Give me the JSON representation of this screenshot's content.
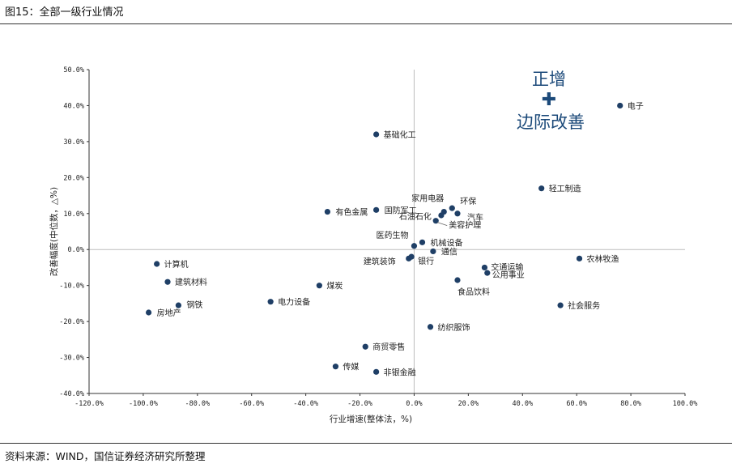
{
  "figure": {
    "title": "图15：全部一级行业情况",
    "source": "资料来源：WIND，国信证券经济研究所整理"
  },
  "chart_data": {
    "type": "scatter",
    "xlabel": "行业增速(整体法，%)",
    "ylabel": "改善幅度(中位数，△%)",
    "xlim": [
      -120,
      100
    ],
    "ylim": [
      -40,
      50
    ],
    "x_ticks": [
      -120,
      -100,
      -80,
      -60,
      -40,
      -20,
      0,
      20,
      40,
      60,
      80,
      100
    ],
    "x_tick_labels": [
      "-120.0%",
      "-100.0%",
      "-80.0%",
      "-60.0%",
      "-40.0%",
      "-20.0%",
      "0.0%",
      "20.0%",
      "40.0%",
      "60.0%",
      "80.0%",
      "100.0%"
    ],
    "y_ticks": [
      -40,
      -30,
      -20,
      -10,
      0,
      10,
      20,
      30,
      40,
      50
    ],
    "y_tick_labels": [
      "-40.0%",
      "-30.0%",
      "-20.0%",
      "-10.0%",
      "0.0%",
      "10.0%",
      "20.0%",
      "30.0%",
      "40.0%",
      "50.0%"
    ],
    "grid": false,
    "marker_color": "#1f3f66",
    "annotation": {
      "line1": "正增",
      "symbol": "✚",
      "line2": "边际改善",
      "color": "#1c4a7a"
    },
    "points": [
      {
        "label": "电子",
        "x": 76,
        "y": 40
      },
      {
        "label": "基础化工",
        "x": -14,
        "y": 32
      },
      {
        "label": "轻工制造",
        "x": 47,
        "y": 17
      },
      {
        "label": "家用电器",
        "x": 11,
        "y": 10.5
      },
      {
        "label": "环保",
        "x": 14,
        "y": 11.5
      },
      {
        "label": "汽车",
        "x": 16,
        "y": 10
      },
      {
        "label": "石油石化",
        "x": 10,
        "y": 9.5
      },
      {
        "label": "美容护理",
        "x": 8,
        "y": 8
      },
      {
        "label": "有色金属",
        "x": -32,
        "y": 10.5
      },
      {
        "label": "国防军工",
        "x": -14,
        "y": 11
      },
      {
        "label": "医药生物",
        "x": 0,
        "y": 1
      },
      {
        "label": "机械设备",
        "x": 3,
        "y": 2
      },
      {
        "label": "通信",
        "x": 7,
        "y": -0.5
      },
      {
        "label": "建筑装饰",
        "x": -2,
        "y": -2.5
      },
      {
        "label": "银行",
        "x": -1,
        "y": -2
      },
      {
        "label": "农林牧渔",
        "x": 61,
        "y": -2.5
      },
      {
        "label": "交通运输",
        "x": 26,
        "y": -5
      },
      {
        "label": "公用事业",
        "x": 27,
        "y": -6.5
      },
      {
        "label": "食品饮料",
        "x": 16,
        "y": -8.5
      },
      {
        "label": "计算机",
        "x": -95,
        "y": -4
      },
      {
        "label": "建筑材料",
        "x": -91,
        "y": -9
      },
      {
        "label": "煤炭",
        "x": -35,
        "y": -10
      },
      {
        "label": "钢铁",
        "x": -87,
        "y": -15.5
      },
      {
        "label": "房地产",
        "x": -98,
        "y": -17.5
      },
      {
        "label": "电力设备",
        "x": -53,
        "y": -14.5
      },
      {
        "label": "社会服务",
        "x": 54,
        "y": -15.5
      },
      {
        "label": "纺织服饰",
        "x": 6,
        "y": -21.5
      },
      {
        "label": "商贸零售",
        "x": -18,
        "y": -27
      },
      {
        "label": "传媒",
        "x": -29,
        "y": -32.5
      },
      {
        "label": "非银金融",
        "x": -14,
        "y": -34
      }
    ]
  }
}
